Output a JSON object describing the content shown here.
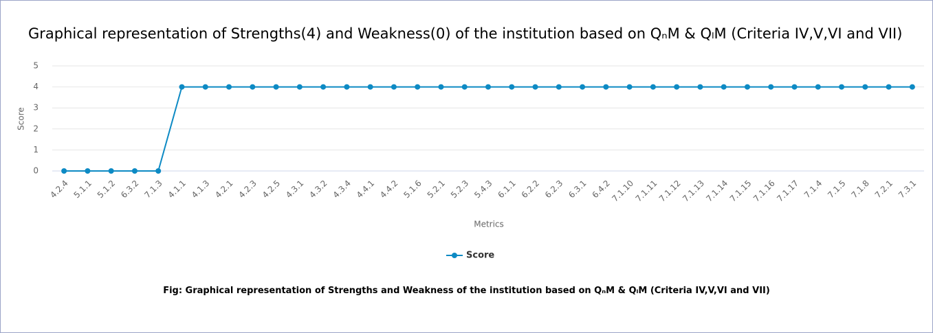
{
  "chart_data": {
    "type": "line",
    "title": "Graphical representation of Strengths(4) and Weakness(0) of the institution based on QₙM & QₗM (Criteria IV,V,VI and VII)",
    "caption": "Fig: Graphical representation of Strengths and Weakness of the institution based on QₙM & QₗM (Criteria IV,V,VI and VII)",
    "x_label": "Metrics",
    "y_label": "Score",
    "categories": [
      "4.2.4",
      "5.1.1",
      "5.1.2",
      "6.3.2",
      "7.1.3",
      "4.1.1",
      "4.1.3",
      "4.2.1",
      "4.2.3",
      "4.2.5",
      "4.3.1",
      "4.3.2",
      "4.3.4",
      "4.4.1",
      "4.4.2",
      "5.1.6",
      "5.2.1",
      "5.2.3",
      "5.4.3",
      "6.1.1",
      "6.2.2",
      "6.2.3",
      "6.3.1",
      "6.4.2",
      "7.1.10",
      "7.1.11",
      "7.1.12",
      "7.1.13",
      "7.1.14",
      "7.1.15",
      "7.1.16",
      "7.1.17",
      "7.1.4",
      "7.1.5",
      "7.1.8",
      "7.2.1",
      "7.3.1"
    ],
    "series": [
      {
        "name": "Score",
        "color": "#0d8ac4",
        "values": [
          0,
          0,
          0,
          0,
          0,
          4,
          4,
          4,
          4,
          4,
          4,
          4,
          4,
          4,
          4,
          4,
          4,
          4,
          4,
          4,
          4,
          4,
          4,
          4,
          4,
          4,
          4,
          4,
          4,
          4,
          4,
          4,
          4,
          4,
          4,
          4,
          4
        ]
      }
    ],
    "ylim": [
      0,
      5
    ],
    "yticks": [
      0,
      1,
      2,
      3,
      4,
      5
    ],
    "grid": true,
    "legend": "bottom"
  }
}
